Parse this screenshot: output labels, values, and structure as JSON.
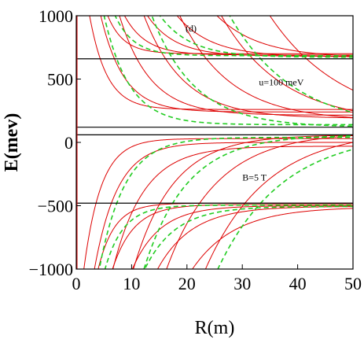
{
  "chart_data": {
    "type": "line",
    "panel_label": "(d)",
    "xlabel": "R(m)",
    "ylabel": "E(mev)",
    "xlim": [
      0,
      50
    ],
    "ylim": [
      -1000,
      1000
    ],
    "x_ticks": [
      0,
      10,
      20,
      30,
      40,
      50
    ],
    "y_ticks": [
      -1000,
      -500,
      0,
      500,
      1000
    ],
    "x_tick_labels": [
      "0",
      "10",
      "20",
      "30",
      "40",
      "50"
    ],
    "y_tick_labels": [
      "−1000",
      "−500",
      "0",
      "500",
      "1000"
    ],
    "annotations": [
      {
        "name": "u-label",
        "text": "u=100 meV",
        "x": 33,
        "y": 450
      },
      {
        "name": "b-label",
        "text": "B=5 T",
        "x": 30,
        "y": -300
      }
    ],
    "grid": false,
    "legend": "none",
    "horizontal_lines": {
      "color": "#000000",
      "values": [
        660,
        120,
        60,
        -480
      ]
    },
    "families": {
      "solid": {
        "color": "#dd0000",
        "dash": false
      },
      "dashed": {
        "color": "#22cc22",
        "dash": true
      }
    },
    "series": [
      {
        "family": "solid",
        "branch": "down",
        "asymptote": 700,
        "amplitude": 2200,
        "decay": 0.35
      },
      {
        "family": "solid",
        "branch": "down",
        "asymptote": 690,
        "amplitude": 3000,
        "decay": 0.26
      },
      {
        "family": "solid",
        "branch": "down",
        "asymptote": 680,
        "amplitude": 4200,
        "decay": 0.2
      },
      {
        "family": "solid",
        "branch": "down",
        "asymptote": 675,
        "amplitude": 6000,
        "decay": 0.16
      },
      {
        "family": "solid",
        "branch": "down",
        "asymptote": 670,
        "amplitude": 9000,
        "decay": 0.13
      },
      {
        "family": "solid",
        "branch": "down",
        "asymptote": 260,
        "amplitude": 1600,
        "decay": 0.32
      },
      {
        "family": "solid",
        "branch": "down",
        "asymptote": 240,
        "amplitude": 2200,
        "decay": 0.24
      },
      {
        "family": "solid",
        "branch": "down",
        "asymptote": 215,
        "amplitude": 3200,
        "decay": 0.18
      },
      {
        "family": "solid",
        "branch": "down",
        "asymptote": 190,
        "amplitude": 4500,
        "decay": 0.14
      },
      {
        "family": "solid",
        "branch": "down",
        "asymptote": 170,
        "amplitude": 6500,
        "decay": 0.11
      },
      {
        "family": "solid",
        "branch": "down",
        "asymptote": 150,
        "amplitude": 9000,
        "decay": 0.09
      },
      {
        "family": "solid",
        "branch": "down",
        "asymptote": 130,
        "amplitude": 12000,
        "decay": 0.075
      },
      {
        "family": "solid",
        "branch": "up",
        "asymptote": 30,
        "amplitude": 1600,
        "decay": 0.32
      },
      {
        "family": "solid",
        "branch": "up",
        "asymptote": 0,
        "amplitude": 2200,
        "decay": 0.24
      },
      {
        "family": "solid",
        "branch": "up",
        "asymptote": -30,
        "amplitude": 3200,
        "decay": 0.18
      },
      {
        "family": "solid",
        "branch": "up",
        "asymptote": 60,
        "amplitude": 4500,
        "decay": 0.14
      },
      {
        "family": "solid",
        "branch": "up",
        "asymptote": 80,
        "amplitude": 6500,
        "decay": 0.11
      },
      {
        "family": "solid",
        "branch": "up",
        "asymptote": 100,
        "amplitude": 9000,
        "decay": 0.09
      },
      {
        "family": "solid",
        "branch": "up",
        "asymptote": -480,
        "amplitude": 2000,
        "decay": 0.34
      },
      {
        "family": "solid",
        "branch": "up",
        "asymptote": -490,
        "amplitude": 2800,
        "decay": 0.26
      },
      {
        "family": "solid",
        "branch": "up",
        "asymptote": -500,
        "amplitude": 3800,
        "decay": 0.2
      },
      {
        "family": "solid",
        "branch": "up",
        "asymptote": -505,
        "amplitude": 5200,
        "decay": 0.16
      },
      {
        "family": "solid",
        "branch": "up",
        "asymptote": -510,
        "amplitude": 7500,
        "decay": 0.13
      },
      {
        "family": "dashed",
        "branch": "down",
        "asymptote": 685,
        "amplitude": 2600,
        "decay": 0.3
      },
      {
        "family": "dashed",
        "branch": "down",
        "asymptote": 672,
        "amplitude": 5000,
        "decay": 0.18
      },
      {
        "family": "dashed",
        "branch": "down",
        "asymptote": 140,
        "amplitude": 2600,
        "decay": 0.22
      },
      {
        "family": "dashed",
        "branch": "down",
        "asymptote": 120,
        "amplitude": 5200,
        "decay": 0.13
      },
      {
        "family": "dashed",
        "branch": "down",
        "asymptote": 100,
        "amplitude": 9500,
        "decay": 0.085
      },
      {
        "family": "dashed",
        "branch": "up",
        "asymptote": 40,
        "amplitude": 2600,
        "decay": 0.22
      },
      {
        "family": "dashed",
        "branch": "up",
        "asymptote": 60,
        "amplitude": 5200,
        "decay": 0.13
      },
      {
        "family": "dashed",
        "branch": "up",
        "asymptote": 80,
        "amplitude": 9500,
        "decay": 0.085
      },
      {
        "family": "dashed",
        "branch": "up",
        "asymptote": -495,
        "amplitude": 2400,
        "decay": 0.3
      },
      {
        "family": "dashed",
        "branch": "up",
        "asymptote": -505,
        "amplitude": 4600,
        "decay": 0.18
      }
    ]
  }
}
